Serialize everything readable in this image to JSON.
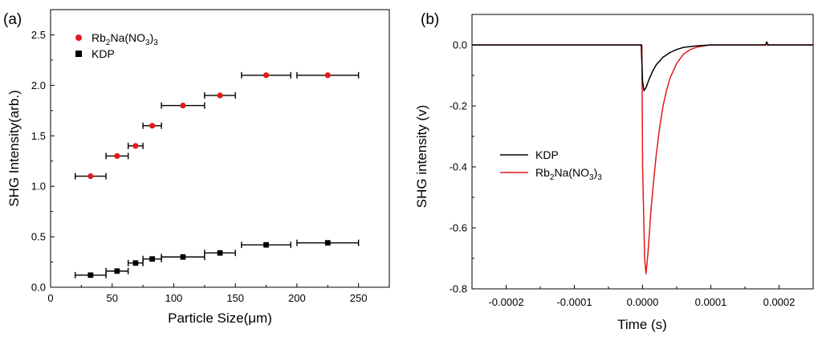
{
  "chart_data": [
    {
      "type": "scatter",
      "panel_label": "(a)",
      "xlabel": "Particle Size(μm)",
      "ylabel": "SHG Intensity(arb.)",
      "xlim": [
        0,
        275
      ],
      "ylim": [
        0,
        2.75
      ],
      "xticks": [
        0,
        50,
        100,
        150,
        200,
        250
      ],
      "xtick_labels": [
        "0",
        "50",
        "100",
        "150",
        "200",
        "250"
      ],
      "yticks": [
        0,
        0.5,
        1.0,
        1.5,
        2.0,
        2.5
      ],
      "ytick_labels": [
        "0.0",
        "0.5",
        "1.0",
        "1.5",
        "2.0",
        "2.5"
      ],
      "legend_position": "top-left",
      "series": [
        {
          "name": "Rb2Na(NO3)3",
          "legend_parts": [
            "Rb",
            "2",
            "Na(NO",
            "3",
            ")",
            "3"
          ],
          "color": "#e31a1a",
          "marker": "circle",
          "points": [
            {
              "x": 32.5,
              "y": 1.1,
              "xmin": 20,
              "xmax": 45
            },
            {
              "x": 54,
              "y": 1.3,
              "xmin": 45,
              "xmax": 63
            },
            {
              "x": 69,
              "y": 1.4,
              "xmin": 63,
              "xmax": 75
            },
            {
              "x": 82.5,
              "y": 1.6,
              "xmin": 75,
              "xmax": 90
            },
            {
              "x": 107.5,
              "y": 1.8,
              "xmin": 90,
              "xmax": 125
            },
            {
              "x": 137.5,
              "y": 1.9,
              "xmin": 125,
              "xmax": 150
            },
            {
              "x": 175,
              "y": 2.1,
              "xmin": 155,
              "xmax": 195
            },
            {
              "x": 225,
              "y": 2.1,
              "xmin": 200,
              "xmax": 250
            }
          ]
        },
        {
          "name": "KDP",
          "legend_parts": [
            "KDP"
          ],
          "color": "#000000",
          "marker": "square",
          "points": [
            {
              "x": 32.5,
              "y": 0.12,
              "xmin": 20,
              "xmax": 45
            },
            {
              "x": 54,
              "y": 0.16,
              "xmin": 45,
              "xmax": 63
            },
            {
              "x": 69,
              "y": 0.24,
              "xmin": 63,
              "xmax": 75
            },
            {
              "x": 82.5,
              "y": 0.28,
              "xmin": 75,
              "xmax": 90
            },
            {
              "x": 107.5,
              "y": 0.3,
              "xmin": 90,
              "xmax": 125
            },
            {
              "x": 137.5,
              "y": 0.34,
              "xmin": 125,
              "xmax": 150
            },
            {
              "x": 175,
              "y": 0.42,
              "xmin": 155,
              "xmax": 195
            },
            {
              "x": 225,
              "y": 0.44,
              "xmin": 200,
              "xmax": 250
            }
          ]
        }
      ]
    },
    {
      "type": "line",
      "panel_label": "(b)",
      "xlabel": "Time (s)",
      "ylabel": "SHG intensity (v)",
      "xlim": [
        -0.00025,
        0.00025
      ],
      "ylim": [
        -0.8,
        0.1
      ],
      "xticks": [
        -0.0002,
        -0.0001,
        0,
        0.0001,
        0.0002
      ],
      "xtick_labels": [
        "-0.0002",
        "-0.0001",
        "0.0000",
        "0.0001",
        "0.0002"
      ],
      "yticks": [
        0,
        -0.2,
        -0.4,
        -0.6,
        -0.8
      ],
      "ytick_labels": [
        "0.0",
        "-0.2",
        "-0.4",
        "-0.6",
        "-0.8"
      ],
      "legend_position": "left-middle",
      "series": [
        {
          "name": "KDP",
          "legend_parts": [
            "KDP"
          ],
          "color": "#000000",
          "x": [
            -0.00025,
            -0.0002,
            -0.00015,
            -0.0001,
            -5e-05,
            -2e-06,
            0.0,
            2e-06,
            5e-06,
            1e-05,
            1.5e-05,
            2e-05,
            3e-05,
            4e-05,
            5e-05,
            6e-05,
            8e-05,
            0.0001,
            0.00015,
            0.00018,
            0.000182,
            0.000184,
            0.0002,
            0.00025
          ],
          "y": [
            0.0,
            0.0,
            0.0,
            0.0,
            0.0,
            0.0,
            -0.12,
            -0.15,
            -0.14,
            -0.11,
            -0.085,
            -0.065,
            -0.04,
            -0.025,
            -0.015,
            -0.008,
            -0.003,
            0.0,
            0.0,
            0.0,
            0.01,
            0.0,
            0.0,
            0.0
          ]
        },
        {
          "name": "Rb2Na(NO3)3",
          "legend_parts": [
            "Rb",
            "2",
            "Na(NO",
            "3",
            ")",
            "3"
          ],
          "color": "#e31a1a",
          "x": [
            -0.00025,
            -0.0002,
            -0.00015,
            -0.0001,
            -5e-05,
            -1e-06,
            0.0,
            3e-06,
            5e-06,
            8e-06,
            1.2e-05,
            1.6e-05,
            2e-05,
            2.5e-05,
            3e-05,
            3.5e-05,
            4e-05,
            5e-05,
            6e-05,
            7e-05,
            8e-05,
            9e-05,
            0.0001,
            0.00015,
            0.0002,
            0.00025
          ],
          "y": [
            0.0,
            0.0,
            0.0,
            0.0,
            0.0,
            0.0,
            -0.4,
            -0.7,
            -0.75,
            -0.68,
            -0.55,
            -0.45,
            -0.36,
            -0.27,
            -0.2,
            -0.15,
            -0.11,
            -0.06,
            -0.03,
            -0.015,
            -0.007,
            -0.003,
            0.0,
            0.0,
            0.0,
            0.0
          ]
        }
      ]
    }
  ]
}
